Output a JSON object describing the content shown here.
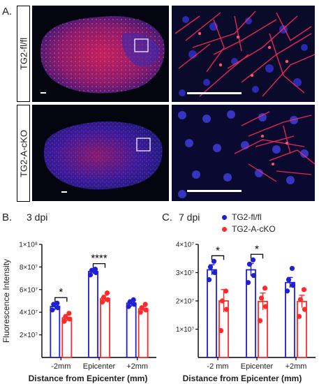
{
  "figure": {
    "panel_a": {
      "letter": "A.",
      "rows": [
        {
          "label": "TG2-fl/fl"
        },
        {
          "label": "TG2-A-cKO"
        }
      ]
    },
    "panel_b": {
      "letter": "B.",
      "subtitle": "3 dpi"
    },
    "panel_c": {
      "letter": "C.",
      "subtitle": "7 dpi"
    },
    "legend": [
      {
        "name": "TG2-fl/fl",
        "color": "#1f1fd6"
      },
      {
        "name": "TG2-A-cKO",
        "color": "#ff2a2a"
      }
    ]
  },
  "chart_data": [
    {
      "type": "bar",
      "subtitle": "3 dpi",
      "ylabel": "Fluorescence Intensity",
      "xlabel": "Distance from Epicenter (mm)",
      "categories": [
        "-2mm",
        "Epicenter",
        "+2mm"
      ],
      "ylim": [
        0,
        100000000
      ],
      "yticks": [
        {
          "value": 20000000,
          "label": "2×10⁷"
        },
        {
          "value": 40000000,
          "label": "4×10⁷"
        },
        {
          "value": 60000000,
          "label": "6×10⁷"
        },
        {
          "value": 80000000,
          "label": "8×10⁷"
        },
        {
          "value": 100000000,
          "label": "1×10⁸"
        }
      ],
      "series": [
        {
          "name": "TG2-fl/fl",
          "color": "#1f1fd6",
          "values": [
            45000000,
            76000000,
            48000000
          ],
          "errors": [
            3000000,
            2000000,
            3000000
          ],
          "points": [
            [
              42000000,
              44000000,
              47000000,
              48000000
            ],
            [
              73000000,
              75000000,
              77000000,
              78000000
            ],
            [
              45000000,
              47000000,
              49000000,
              51000000
            ]
          ]
        },
        {
          "name": "TG2-A-cKO",
          "color": "#ff2a2a",
          "values": [
            35000000,
            52000000,
            43000000
          ],
          "errors": [
            3000000,
            3000000,
            2000000
          ],
          "points": [
            [
              32000000,
              34000000,
              36000000,
              39000000
            ],
            [
              49000000,
              51000000,
              53000000,
              57000000
            ],
            [
              40000000,
              42000000,
              44000000,
              47000000
            ]
          ]
        }
      ],
      "significance": [
        {
          "category": "-2mm",
          "label": "*"
        },
        {
          "category": "Epicenter",
          "label": "****"
        }
      ]
    },
    {
      "type": "bar",
      "subtitle": "7 dpi",
      "ylabel": "",
      "xlabel": "Distance from Epicenter (mm)",
      "categories": [
        "-2 mm",
        "Epicenter",
        "+2mm"
      ],
      "ylim": [
        0,
        40000000
      ],
      "yticks": [
        {
          "value": 10000000,
          "label": "1×10⁷"
        },
        {
          "value": 20000000,
          "label": "2×10⁷"
        },
        {
          "value": 30000000,
          "label": "3×10⁷"
        },
        {
          "value": 40000000,
          "label": "4×10⁷"
        }
      ],
      "series": [
        {
          "name": "TG2-fl/fl",
          "color": "#1f1fd6",
          "values": [
            31000000,
            31000000,
            26500000
          ],
          "errors": [
            1800000,
            2200000,
            1800000
          ],
          "points": [
            [
              27500000,
              30000000,
              32000000,
              34000000
            ],
            [
              26500000,
              29000000,
              33000000,
              34500000
            ],
            [
              23500000,
              25500000,
              27500000,
              31500000
            ]
          ]
        },
        {
          "name": "TG2-A-cKO",
          "color": "#ff2a2a",
          "values": [
            20000000,
            19800000,
            19800000
          ],
          "errors": [
            4000000,
            3000000,
            2200000
          ],
          "points": [
            [
              9500000,
              17000000,
              20000000,
              23500000
            ],
            [
              13000000,
              18000000,
              21000000,
              24500000
            ],
            [
              14500000,
              17000000,
              20500000,
              24000000
            ]
          ]
        }
      ],
      "significance": [
        {
          "category": "-2 mm",
          "label": "*"
        },
        {
          "category": "Epicenter",
          "label": "*"
        }
      ]
    }
  ]
}
